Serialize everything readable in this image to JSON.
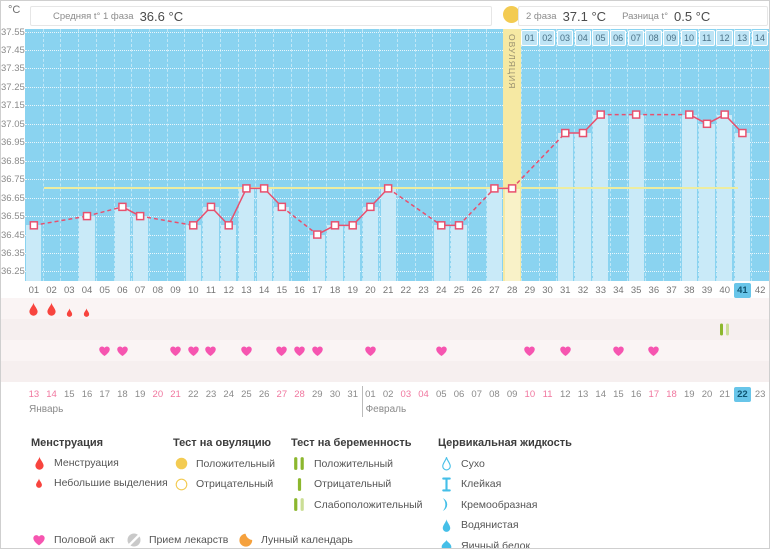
{
  "header": {
    "unit_label": "°C",
    "avg_phase1_label": "Средняя t° 1 фаза",
    "avg_phase1_value": "36.6 °C",
    "phase2_label": "2 фаза",
    "phase2_value": "37.1 °C",
    "diff_label": "Разница t°",
    "diff_value": "0.5 °C"
  },
  "colors": {
    "chart_bg": "#8AD3F0",
    "measured_bar": "#C9EAF8",
    "ovulation_band": "#F6E9A3",
    "coverline": "#EDEDA0",
    "temp_line": "#E8506E",
    "menstruation": "#F8443E",
    "heart": "#F655B0",
    "test_bar_dark": "#8CB72E",
    "test_bar_light": "#CBDE96",
    "fluid_blue": "#45BFE8",
    "highlight_cell": "#68C5E9",
    "weekend_text": "#F0779F",
    "ovulation_circle": "#F3CB52",
    "moon_orange": "#F5A13D",
    "pill_gray": "#C9C9C9"
  },
  "chart_data": {
    "type": "line",
    "title": "Basal body temperature cycle chart",
    "ylabel": "°C",
    "ylim": [
      36.25,
      37.55
    ],
    "yticks": [
      37.55,
      37.45,
      37.35,
      37.25,
      37.15,
      37.05,
      36.95,
      36.85,
      36.75,
      36.65,
      36.55,
      36.45,
      36.35,
      36.25
    ],
    "x_days": 42,
    "day_numbers": [
      "01",
      "02",
      "03",
      "04",
      "05",
      "06",
      "07",
      "08",
      "09",
      "10",
      "11",
      "12",
      "13",
      "14",
      "15",
      "16",
      "17",
      "18",
      "19",
      "20",
      "21",
      "22",
      "23",
      "24",
      "25",
      "26",
      "27",
      "28",
      "29",
      "30",
      "31",
      "32",
      "33",
      "34",
      "35",
      "36",
      "37",
      "38",
      "39",
      "40",
      "41",
      "42"
    ],
    "phase2_day_numbers": [
      "01",
      "02",
      "03",
      "04",
      "05",
      "06",
      "07",
      "08",
      "09",
      "10",
      "11",
      "12",
      "13",
      "14"
    ],
    "phase2_start_col": 29,
    "current_day_col": 41,
    "ovulation_day": 28,
    "ovulation_band_label": "ОВУЛЯЦИЯ",
    "coverline": 36.7,
    "points": [
      {
        "d": 1,
        "t": 36.5
      },
      {
        "d": 4,
        "t": 36.55
      },
      {
        "d": 6,
        "t": 36.6
      },
      {
        "d": 7,
        "t": 36.55
      },
      {
        "d": 10,
        "t": 36.5
      },
      {
        "d": 11,
        "t": 36.6
      },
      {
        "d": 12,
        "t": 36.5
      },
      {
        "d": 13,
        "t": 36.7
      },
      {
        "d": 14,
        "t": 36.7
      },
      {
        "d": 15,
        "t": 36.6
      },
      {
        "d": 17,
        "t": 36.45
      },
      {
        "d": 18,
        "t": 36.5
      },
      {
        "d": 19,
        "t": 36.5
      },
      {
        "d": 20,
        "t": 36.6
      },
      {
        "d": 21,
        "t": 36.7
      },
      {
        "d": 24,
        "t": 36.5
      },
      {
        "d": 25,
        "t": 36.5
      },
      {
        "d": 27,
        "t": 36.7
      },
      {
        "d": 28,
        "t": 36.7
      },
      {
        "d": 31,
        "t": 37.0
      },
      {
        "d": 32,
        "t": 37.0
      },
      {
        "d": 33,
        "t": 37.1
      },
      {
        "d": 35,
        "t": 37.1
      },
      {
        "d": 38,
        "t": 37.1
      },
      {
        "d": 39,
        "t": 37.05
      },
      {
        "d": 40,
        "t": 37.1
      },
      {
        "d": 41,
        "t": 37.0
      }
    ],
    "events": {
      "menstruation_heavy": [
        1,
        2
      ],
      "menstruation_light": [
        3,
        4
      ],
      "intercourse": [
        5,
        6,
        9,
        10,
        11,
        13,
        15,
        16,
        17,
        20,
        24,
        29,
        31,
        34,
        36
      ],
      "pregnancy_test_weak_positive": [
        40
      ]
    },
    "dates": {
      "labels": [
        "13",
        "14",
        "15",
        "16",
        "17",
        "18",
        "19",
        "20",
        "21",
        "22",
        "23",
        "24",
        "25",
        "26",
        "27",
        "28",
        "29",
        "30",
        "31",
        "01",
        "02",
        "03",
        "04",
        "05",
        "06",
        "07",
        "08",
        "09",
        "10",
        "11",
        "12",
        "13",
        "14",
        "15",
        "16",
        "17",
        "18",
        "19",
        "20",
        "21",
        "22",
        "23"
      ],
      "weekend_cols": [
        1,
        2,
        8,
        9,
        15,
        16,
        22,
        23,
        29,
        30,
        36,
        37
      ],
      "current_col": 41,
      "divider_col": 20,
      "months": [
        {
          "label": "Январь",
          "start_col": 1
        },
        {
          "label": "Февраль",
          "start_col": 20
        }
      ]
    }
  },
  "legend": {
    "sections": [
      {
        "title": "Менструация",
        "items": [
          {
            "icon": "drop-red-large",
            "label": "Менструация"
          },
          {
            "icon": "drop-red-small",
            "label": "Небольшие выделения"
          }
        ]
      },
      {
        "title": "Тест на овуляцию",
        "items": [
          {
            "icon": "circle-yellow-filled",
            "label": "Положительный"
          },
          {
            "icon": "circle-yellow-outline",
            "label": "Отрицательный"
          }
        ]
      },
      {
        "title": "Тест на беременность",
        "items": [
          {
            "icon": "test-positive",
            "label": "Положительный"
          },
          {
            "icon": "test-negative",
            "label": "Отрицательный"
          },
          {
            "icon": "test-weak",
            "label": "Слабоположительный"
          }
        ]
      },
      {
        "title": "Цервикальная жидкость",
        "items": [
          {
            "icon": "drop-outline-blue",
            "label": "Сухо"
          },
          {
            "icon": "sticky",
            "label": "Клейкая"
          },
          {
            "icon": "creamy",
            "label": "Кремообразная"
          },
          {
            "icon": "watery",
            "label": "Водянистая"
          },
          {
            "icon": "eggwhite",
            "label": "Яичный белок"
          }
        ]
      }
    ],
    "footer_items": [
      {
        "icon": "heart",
        "label": "Половой акт"
      },
      {
        "icon": "pill",
        "label": "Прием лекарств"
      },
      {
        "icon": "moon",
        "label": "Лунный календарь"
      }
    ]
  }
}
